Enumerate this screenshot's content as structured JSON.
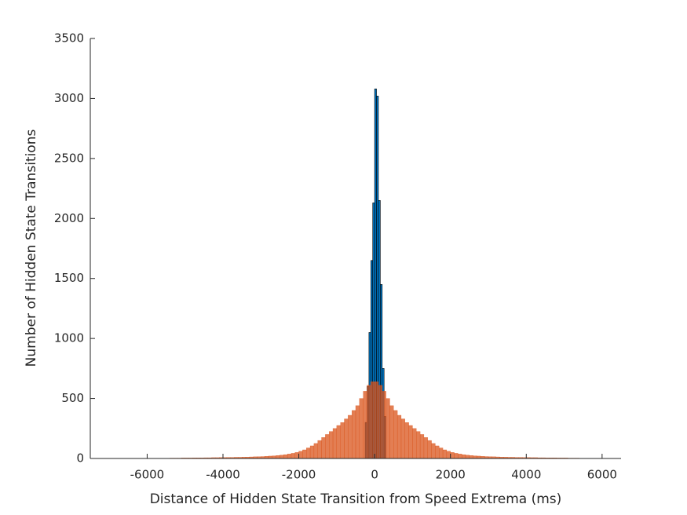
{
  "chart_data": {
    "type": "histogram",
    "xlabel": "Distance of Hidden State Transition from Speed Extrema (ms)",
    "ylabel": "Number of Hidden State Transitions",
    "xlim": [
      -7500,
      6500
    ],
    "ylim": [
      0,
      3500
    ],
    "xticks": [
      -6000,
      -4000,
      -2000,
      0,
      2000,
      4000,
      6000
    ],
    "yticks": [
      0,
      500,
      1000,
      1500,
      2000,
      2500,
      3000,
      3500
    ],
    "series": [
      {
        "color": "#0072BD",
        "bins": [
          -250,
          -200,
          -150,
          -100,
          -50,
          0,
          50,
          100,
          150,
          200,
          250,
          300
        ],
        "values": [
          300,
          600,
          1050,
          1650,
          2130,
          3080,
          3020,
          2150,
          1450,
          750,
          350
        ]
      },
      {
        "color": "#D95319",
        "bins": [
          -6000,
          -5900,
          -5800,
          -5700,
          -5600,
          -5500,
          -5400,
          -5300,
          -5200,
          -5100,
          -5000,
          -4900,
          -4800,
          -4700,
          -4600,
          -4500,
          -4400,
          -4300,
          -4200,
          -4100,
          -4000,
          -3900,
          -3800,
          -3700,
          -3600,
          -3500,
          -3400,
          -3300,
          -3200,
          -3100,
          -3000,
          -2900,
          -2800,
          -2700,
          -2600,
          -2500,
          -2400,
          -2300,
          -2200,
          -2100,
          -2000,
          -1900,
          -1800,
          -1700,
          -1600,
          -1500,
          -1400,
          -1300,
          -1200,
          -1100,
          -1000,
          -900,
          -800,
          -700,
          -600,
          -500,
          -400,
          -300,
          -200,
          -100,
          0,
          100,
          200,
          300,
          400,
          500,
          600,
          700,
          800,
          900,
          1000,
          1100,
          1200,
          1300,
          1400,
          1500,
          1600,
          1700,
          1800,
          1900,
          2000,
          2100,
          2200,
          2300,
          2400,
          2500,
          2600,
          2700,
          2800,
          2900,
          3000,
          3100,
          3200,
          3300,
          3400,
          3500,
          3600,
          3700,
          3800,
          3900,
          4000,
          4100,
          4200,
          4300,
          4400,
          4500,
          4600,
          4700,
          4800,
          4900,
          5000,
          5100,
          5200,
          5300,
          5400,
          5500,
          5600,
          5700,
          5800,
          5900,
          6000
        ],
        "values": [
          1,
          1,
          1,
          2,
          2,
          2,
          3,
          3,
          3,
          4,
          4,
          4,
          5,
          5,
          5,
          6,
          6,
          7,
          7,
          8,
          8,
          9,
          9,
          10,
          10,
          11,
          12,
          13,
          14,
          15,
          16,
          18,
          20,
          22,
          25,
          28,
          32,
          37,
          43,
          50,
          60,
          72,
          88,
          105,
          125,
          150,
          175,
          200,
          225,
          250,
          275,
          300,
          330,
          360,
          400,
          440,
          500,
          560,
          610,
          640,
          640,
          610,
          560,
          500,
          440,
          400,
          360,
          330,
          300,
          275,
          250,
          225,
          200,
          175,
          150,
          125,
          105,
          88,
          72,
          60,
          50,
          43,
          37,
          32,
          28,
          25,
          22,
          20,
          18,
          16,
          15,
          14,
          13,
          12,
          11,
          10,
          10,
          9,
          9,
          8,
          8,
          7,
          7,
          6,
          6,
          5,
          5,
          5,
          4,
          4,
          4,
          3,
          3,
          3,
          2,
          2,
          2,
          1,
          1,
          1
        ]
      }
    ]
  }
}
